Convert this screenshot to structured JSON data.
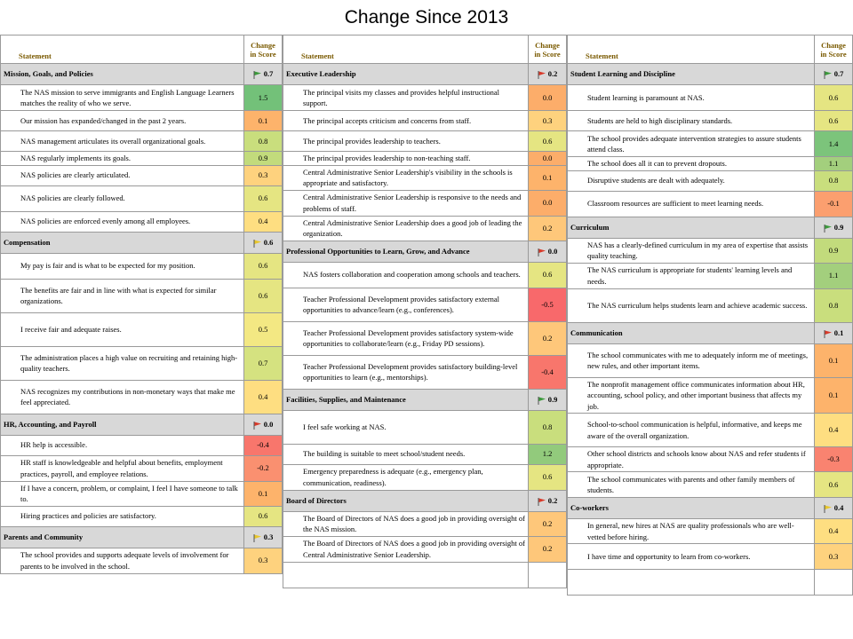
{
  "title": "Change Since 2013",
  "header": {
    "statement": "Statement",
    "change": "Change",
    "in_score": "in Score"
  },
  "columns": [
    [
      {
        "type": "cat",
        "name": "Mission, Goals, and Policies",
        "score": "0.7",
        "flag": "green"
      },
      {
        "type": "item",
        "text": "The NAS mission to serve immigrants and English Language Learners matches the reality of who we serve.",
        "score": "1.5",
        "color": "#73c179",
        "h": 29
      },
      {
        "type": "item",
        "text": "Our mission has expanded/changed in the past 2 years.",
        "score": "0.1",
        "color": "#fdb36b",
        "h": 23
      },
      {
        "type": "item",
        "text": "NAS management articulates its overall organizational goals.",
        "score": "0.8",
        "color": "#c9de7d",
        "h": 23
      },
      {
        "type": "item",
        "text": "NAS regularly implements its goals.",
        "score": "0.9",
        "color": "#c2db7c",
        "h": 14
      },
      {
        "type": "item",
        "text": "NAS policies are clearly articulated.",
        "score": "0.3",
        "color": "#fed27e",
        "h": 23
      },
      {
        "type": "item",
        "text": "NAS policies are clearly followed.",
        "score": "0.6",
        "color": "#e5e582",
        "h": 29
      },
      {
        "type": "item",
        "text": "NAS policies are enforced evenly among all employees.",
        "score": "0.4",
        "color": "#fede81",
        "h": 23
      },
      {
        "type": "cat",
        "name": "Compensation",
        "score": "0.6",
        "flag": "yellow"
      },
      {
        "type": "item",
        "text": "My pay is fair and is what to be expected for my position.",
        "score": "0.6",
        "color": "#e5e582",
        "h": 29
      },
      {
        "type": "item",
        "text": "The benefits are fair and in line with what is expected for similar organizations.",
        "score": "0.6",
        "color": "#e5e582",
        "h": 38
      },
      {
        "type": "item",
        "text": "I receive fair and adequate raises.",
        "score": "0.5",
        "color": "#f3e883",
        "h": 38
      },
      {
        "type": "item",
        "text": "The administration places a high value on recruiting and retaining high-quality teachers.",
        "score": "0.7",
        "color": "#d5e280",
        "h": 38
      },
      {
        "type": "item",
        "text": "NAS recognizes my contributions in non-monetary ways that make me feel appreciated.",
        "score": "0.4",
        "color": "#fede81",
        "h": 38
      },
      {
        "type": "cat",
        "name": "HR, Accounting, and Payroll",
        "score": "0.0",
        "flag": "red"
      },
      {
        "type": "item",
        "text": "HR help is accessible.",
        "score": "-0.4",
        "color": "#f8766c",
        "h": 23
      },
      {
        "type": "item",
        "text": "HR staff is knowledgeable and helpful about benefits, employment practices, payroll, and employee relations.",
        "score": "-0.2",
        "color": "#fa9070",
        "h": 29
      },
      {
        "type": "item",
        "text": "If I have a concern, problem, or complaint, I feel I have someone to talk to.",
        "score": "0.1",
        "color": "#fdb36b",
        "h": 23
      },
      {
        "type": "item",
        "text": "Hiring practices and policies are satisfactory.",
        "score": "0.6",
        "color": "#e5e582",
        "h": 23
      },
      {
        "type": "cat",
        "name": "Parents and Community",
        "score": "0.3",
        "flag": "yellow"
      },
      {
        "type": "item",
        "text": "The school provides and supports adequate levels of involvement for parents to be involved in the school.",
        "score": "0.3",
        "color": "#fed27e",
        "h": 29
      }
    ],
    [
      {
        "type": "cat",
        "name": "Executive Leadership",
        "score": "0.2",
        "flag": "red"
      },
      {
        "type": "item",
        "text": "The principal visits my classes and provides helpful instructional support.",
        "score": "0.0",
        "color": "#fcad6a",
        "h": 29
      },
      {
        "type": "item",
        "text": "The principal accepts criticism and concerns from staff.",
        "score": "0.3",
        "color": "#fed27e",
        "h": 23
      },
      {
        "type": "item",
        "text": "The principal provides leadership to teachers.",
        "score": "0.6",
        "color": "#e5e582",
        "h": 23
      },
      {
        "type": "item",
        "text": "The principal provides leadership to non-teaching staff.",
        "score": "0.0",
        "color": "#fcad6a",
        "h": 14
      },
      {
        "type": "item",
        "text": "Central Administrative Senior Leadership's visibility in the schools is appropriate and satisfactory.",
        "score": "0.1",
        "color": "#fdb36b",
        "h": 23
      },
      {
        "type": "item",
        "text": "Central Administrative Senior Leadership is responsive to the needs and problems of staff.",
        "score": "0.0",
        "color": "#fcad6a",
        "h": 29
      },
      {
        "type": "item",
        "text": "Central Administrative Senior Leadership does a good job of leading the organization.",
        "score": "0.2",
        "color": "#fec77a",
        "h": 23
      },
      {
        "type": "cat",
        "name": "Professional Opportunities to Learn, Grow, and Advance",
        "score": "0.0",
        "flag": "red"
      },
      {
        "type": "item",
        "text": "NAS fosters collaboration and cooperation among schools and teachers.",
        "score": "0.6",
        "color": "#e5e582",
        "h": 29
      },
      {
        "type": "item",
        "text": "Teacher Professional Development provides satisfactory external opportunities to advance/learn (e.g., conferences).",
        "score": "-0.5",
        "color": "#f8696b",
        "h": 38
      },
      {
        "type": "item",
        "text": "Teacher Professional Development provides satisfactory system-wide opportunities to collaborate/learn (e.g., Friday PD sessions).",
        "score": "0.2",
        "color": "#fec77a",
        "h": 38
      },
      {
        "type": "item",
        "text": "Teacher Professional Development provides satisfactory building-level opportunities to learn (e.g., mentorships).",
        "score": "-0.4",
        "color": "#f8766c",
        "h": 38
      },
      {
        "type": "cat",
        "name": "Facilities, Supplies, and Maintenance",
        "score": "0.9",
        "flag": "green"
      },
      {
        "type": "item",
        "text": "I feel safe working at NAS.",
        "score": "0.8",
        "color": "#c9de7d",
        "h": 38
      },
      {
        "type": "item",
        "text": "The building is suitable to meet school/student needs.",
        "score": "1.2",
        "color": "#92ca7c",
        "h": 23
      },
      {
        "type": "item",
        "text": "Emergency preparedness is adequate (e.g., emergency plan, communication, readiness).",
        "score": "0.6",
        "color": "#e5e582",
        "h": 29
      },
      {
        "type": "cat",
        "name": "Board of Directors",
        "score": "0.2",
        "flag": "red"
      },
      {
        "type": "item",
        "text": "The Board of Directors of NAS does a good job in providing oversight of the NAS mission.",
        "score": "0.2",
        "color": "#fec77a",
        "h": 23
      },
      {
        "type": "item",
        "text": "The Board of Directors of NAS does a good job in providing oversight of Central Administrative Senior Leadership.",
        "score": "0.2",
        "color": "#fec77a",
        "h": 29
      },
      {
        "type": "blank",
        "h": 29
      }
    ],
    [
      {
        "type": "cat",
        "name": "Student Learning and Discipline",
        "score": "0.7",
        "flag": "green"
      },
      {
        "type": "item",
        "text": "Student learning is paramount at NAS.",
        "score": "0.6",
        "color": "#e5e582",
        "h": 29
      },
      {
        "type": "item",
        "text": "Students are held to high disciplinary standards.",
        "score": "0.6",
        "color": "#e5e582",
        "h": 23
      },
      {
        "type": "item",
        "text": "The school provides adequate intervention strategies to assure students attend class.",
        "score": "1.4",
        "color": "#7cc47b",
        "h": 29
      },
      {
        "type": "item",
        "text": "The school does all it can to prevent dropouts.",
        "score": "1.1",
        "color": "#a3cf7d",
        "h": 14
      },
      {
        "type": "item",
        "text": "Disruptive students are dealt with adequately.",
        "score": "0.8",
        "color": "#c9de7d",
        "h": 23
      },
      {
        "type": "item",
        "text": "Classroom resources are sufficient to meet learning needs.",
        "score": "-0.1",
        "color": "#fb9f6f",
        "h": 29
      },
      {
        "type": "cat",
        "name": "Curriculum",
        "score": "0.9",
        "flag": "green"
      },
      {
        "type": "item",
        "text": "NAS has a clearly-defined curriculum in my area of expertise that assists quality teaching.",
        "score": "0.9",
        "color": "#c2db7c",
        "h": 23
      },
      {
        "type": "item",
        "text": "The NAS curriculum is appropriate for students' learning levels and needs.",
        "score": "1.1",
        "color": "#a3cf7d",
        "h": 29
      },
      {
        "type": "item",
        "text": "The NAS curriculum helps students learn and achieve academic success.",
        "score": "0.8",
        "color": "#c9de7d",
        "h": 38
      },
      {
        "type": "cat",
        "name": "Communication",
        "score": "0.1",
        "flag": "red"
      },
      {
        "type": "item",
        "text": "The school communicates with me to adequately inform me of meetings, new rules, and other important items.",
        "score": "0.1",
        "color": "#fdb36b",
        "h": 38
      },
      {
        "type": "item",
        "text": "The nonprofit management office communicates information about HR, accounting, school policy, and other important business that affects my job.",
        "score": "0.1",
        "color": "#fdb36b",
        "h": 38
      },
      {
        "type": "item",
        "text": "School-to-school communication is helpful, informative, and keeps me aware of the overall organization.",
        "score": "0.4",
        "color": "#fede81",
        "h": 38
      },
      {
        "type": "item",
        "text": "Other school districts and schools know about NAS and refer students if appropriate.",
        "score": "-0.3",
        "color": "#f98370",
        "h": 23
      },
      {
        "type": "item",
        "text": "The school communicates with parents and other family members of students.",
        "score": "0.6",
        "color": "#e5e582",
        "h": 29
      },
      {
        "type": "cat",
        "name": "Co-workers",
        "score": "0.4",
        "flag": "yellow"
      },
      {
        "type": "item",
        "text": "In general, new hires at NAS are quality professionals who are well-vetted before hiring.",
        "score": "0.4",
        "color": "#fede81",
        "h": 23
      },
      {
        "type": "item",
        "text": "I have time and opportunity to learn from co-workers.",
        "score": "0.3",
        "color": "#fed27e",
        "h": 29
      },
      {
        "type": "blank",
        "h": 29
      }
    ]
  ],
  "flag_colors": {
    "green": "#3c9a3c",
    "yellow": "#e8c62a",
    "red": "#d83a2a"
  },
  "category_bg": "#d8d8d8"
}
